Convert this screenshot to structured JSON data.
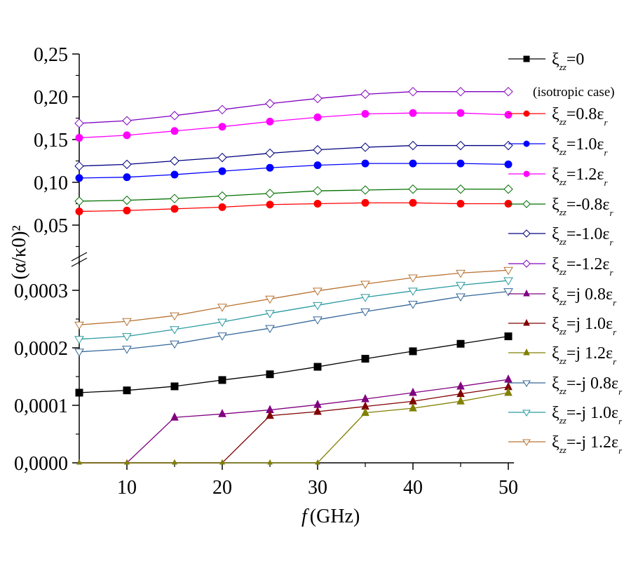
{
  "chart_data": {
    "type": "line",
    "title": "",
    "xlabel": "f (GHz)",
    "xlabel_italic_part": "f",
    "xlabel_rest": "(GHz)",
    "ylabel": "(α/κ0)²",
    "x": [
      5,
      10,
      15,
      20,
      25,
      30,
      35,
      40,
      45,
      50
    ],
    "xlim": [
      5,
      51
    ],
    "x_ticks": [
      "10",
      "20",
      "30",
      "40",
      "50"
    ],
    "x_tick_values": [
      10,
      20,
      30,
      40,
      50
    ],
    "y_break": true,
    "upper_axis": {
      "ylim": [
        0.02,
        0.25
      ],
      "ticks": [
        "0,05",
        "0,10",
        "0,15",
        "0,20",
        "0,25"
      ],
      "tick_values": [
        0.05,
        0.1,
        0.15,
        0.2,
        0.25
      ]
    },
    "lower_axis": {
      "ylim": [
        0.0,
        0.00034
      ],
      "ticks": [
        "0,0000",
        "0,0001",
        "0,0002",
        "0,0003"
      ],
      "tick_values": [
        0.0,
        0.0001,
        0.0002,
        0.0003
      ]
    },
    "grid": false,
    "legend_position": "right",
    "legend_note": "(isotropic case)",
    "series": [
      {
        "name": "ξzz=0",
        "base": "ξ",
        "sub": "zz",
        "rest": "=0",
        "er": false,
        "color": "#000000",
        "marker": "square",
        "filled": true,
        "axis": "lower",
        "values": [
          0.000122,
          0.000126,
          0.000133,
          0.000144,
          0.000154,
          0.000167,
          0.000181,
          0.000194,
          0.000207,
          0.00022
        ]
      },
      {
        "name": "ξzz=0.8εr",
        "base": "ξ",
        "sub": "zz",
        "rest": "=0.8ε",
        "er": true,
        "color": "#ff0000",
        "marker": "circle",
        "filled": true,
        "axis": "upper",
        "values": [
          0.066,
          0.067,
          0.069,
          0.071,
          0.074,
          0.075,
          0.076,
          0.076,
          0.075,
          0.075
        ]
      },
      {
        "name": "ξzz=1.0εr",
        "base": "ξ",
        "sub": "zz",
        "rest": "=1.0ε",
        "er": true,
        "color": "#0000ff",
        "marker": "circle",
        "filled": true,
        "axis": "upper",
        "values": [
          0.105,
          0.106,
          0.109,
          0.113,
          0.117,
          0.12,
          0.122,
          0.122,
          0.122,
          0.121
        ]
      },
      {
        "name": "ξzz=1.2εr",
        "base": "ξ",
        "sub": "zz",
        "rest": "=1.2ε",
        "er": true,
        "color": "#ff00ff",
        "marker": "circle",
        "filled": true,
        "axis": "upper",
        "values": [
          0.152,
          0.155,
          0.16,
          0.165,
          0.171,
          0.176,
          0.18,
          0.181,
          0.181,
          0.179
        ]
      },
      {
        "name": "ξzz=-0.8εr",
        "base": "ξ",
        "sub": "zz",
        "rest": "=-0.8ε",
        "er": true,
        "color": "#007000",
        "marker": "diamond",
        "filled": false,
        "axis": "upper",
        "values": [
          0.078,
          0.079,
          0.081,
          0.084,
          0.087,
          0.09,
          0.091,
          0.092,
          0.092,
          0.092
        ]
      },
      {
        "name": "ξzz=-1.0εr",
        "base": "ξ",
        "sub": "zz",
        "rest": "=-1.0ε",
        "er": true,
        "color": "#000080",
        "marker": "diamond",
        "filled": false,
        "axis": "upper",
        "values": [
          0.119,
          0.121,
          0.125,
          0.129,
          0.134,
          0.138,
          0.141,
          0.143,
          0.143,
          0.143
        ]
      },
      {
        "name": "ξzz=-1.2εr",
        "base": "ξ",
        "sub": "zz",
        "rest": "=-1.2ε",
        "er": true,
        "color": "#8000c0",
        "marker": "diamond",
        "filled": false,
        "axis": "upper",
        "values": [
          0.169,
          0.172,
          0.178,
          0.185,
          0.192,
          0.198,
          0.203,
          0.206,
          0.206,
          0.206
        ]
      },
      {
        "name": "ξzz=j 0.8εr",
        "base": "ξ",
        "sub": "zz",
        "rest": "=j 0.8ε",
        "er": true,
        "color": "#800080",
        "marker": "triangle",
        "filled": true,
        "axis": "lower",
        "values": [
          0.0,
          0.0,
          7.9e-05,
          8.5e-05,
          9.2e-05,
          0.000101,
          0.000111,
          0.000122,
          0.000133,
          0.000145
        ]
      },
      {
        "name": "ξzz=j 1.0εr",
        "base": "ξ",
        "sub": "zz",
        "rest": "=j 1.0ε",
        "er": true,
        "color": "#800000",
        "marker": "triangle",
        "filled": true,
        "axis": "lower",
        "values": [
          0.0,
          0.0,
          0.0,
          0.0,
          8.2e-05,
          8.9e-05,
          9.8e-05,
          0.000107,
          0.00012,
          0.000132
        ]
      },
      {
        "name": "ξzz=j 1.2εr",
        "base": "ξ",
        "sub": "zz",
        "rest": "=j 1.2ε",
        "er": true,
        "color": "#808000",
        "marker": "triangle",
        "filled": true,
        "axis": "lower",
        "values": [
          0.0,
          0.0,
          0.0,
          0.0,
          0.0,
          0.0,
          8.7e-05,
          9.5e-05,
          0.000107,
          0.000122
        ]
      },
      {
        "name": "ξzz=-j 0.8εr",
        "base": "ξ",
        "sub": "zz",
        "rest": "=-j 0.8ε",
        "er": true,
        "color": "#336699",
        "marker": "triangle-down",
        "filled": false,
        "axis": "lower",
        "values": [
          0.000193,
          0.000198,
          0.000207,
          0.000221,
          0.000234,
          0.000249,
          0.000263,
          0.000276,
          0.000289,
          0.000298
        ]
      },
      {
        "name": "ξzz=-j 1.0εr",
        "base": "ξ",
        "sub": "zz",
        "rest": "=-j 1.0ε",
        "er": true,
        "color": "#2a9aa0",
        "marker": "triangle-down",
        "filled": false,
        "axis": "lower",
        "values": [
          0.000215,
          0.00022,
          0.000232,
          0.000245,
          0.00026,
          0.000274,
          0.000288,
          0.000299,
          0.000309,
          0.000317
        ]
      },
      {
        "name": "ξzz=-j 1.2εr",
        "base": "ξ",
        "sub": "zz",
        "rest": "=-j 1.2ε",
        "er": true,
        "color": "#b87333",
        "marker": "triangle-down",
        "filled": false,
        "axis": "lower",
        "values": [
          0.00024,
          0.000246,
          0.000256,
          0.000271,
          0.000285,
          0.000299,
          0.000311,
          0.000322,
          0.00033,
          0.000335
        ]
      }
    ]
  }
}
